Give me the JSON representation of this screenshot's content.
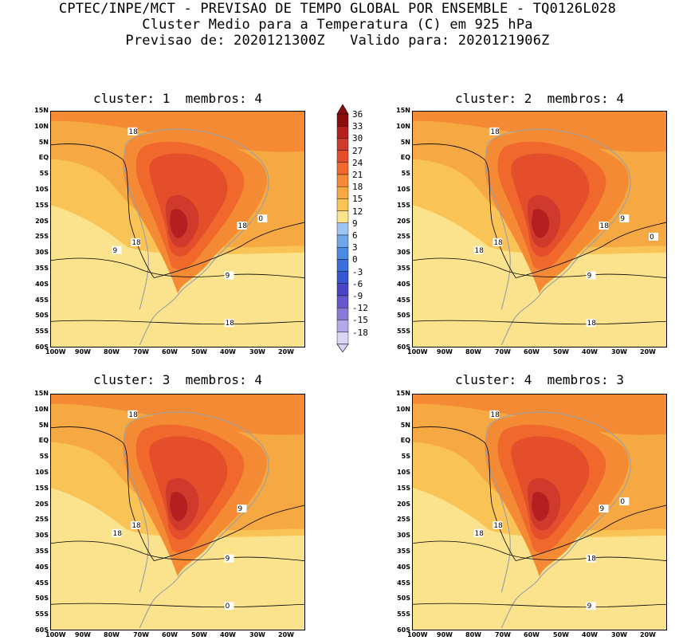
{
  "header": {
    "line1": "CPTEC/INPE/MCT - PREVISAO DE TEMPO GLOBAL POR ENSEMBLE - TQ0126L028",
    "line2": "Cluster Medio para a Temperatura (C) em 925 hPa",
    "line3": "Previsao de: 2020121300Z   Valido para: 2020121906Z"
  },
  "panels": [
    {
      "title": "cluster: 1  membros: 4",
      "contour_labels": [
        "18",
        "18",
        "18",
        "9",
        "9",
        "18",
        "0"
      ]
    },
    {
      "title": "cluster: 2  membros: 4",
      "contour_labels": [
        "18",
        "18",
        "18",
        "18",
        "9",
        "18",
        "9",
        "0"
      ]
    },
    {
      "title": "cluster: 3  membros: 4",
      "contour_labels": [
        "18",
        "18",
        "9",
        "18",
        "9",
        "0"
      ]
    },
    {
      "title": "cluster: 4  membros: 3",
      "contour_labels": [
        "18",
        "18",
        "9",
        "18",
        "18",
        "9",
        "0"
      ]
    }
  ],
  "axes": {
    "lat_labels": [
      "15N",
      "10N",
      "5N",
      "EQ",
      "5S",
      "10S",
      "15S",
      "20S",
      "25S",
      "30S",
      "35S",
      "40S",
      "45S",
      "50S",
      "55S",
      "60S"
    ],
    "lon_labels": [
      "100W",
      "90W",
      "80W",
      "70W",
      "60W",
      "50W",
      "40W",
      "30W",
      "20W"
    ]
  },
  "colorbar": {
    "labels": [
      "36",
      "33",
      "30",
      "27",
      "24",
      "21",
      "18",
      "15",
      "12",
      "9",
      "6",
      "3",
      "0",
      "-3",
      "-6",
      "-9",
      "-12",
      "-15",
      "-18"
    ],
    "colors": [
      "#8c0d0d",
      "#b51f20",
      "#cf3a2c",
      "#e44e2b",
      "#f0682c",
      "#f48a34",
      "#f6a842",
      "#f9c356",
      "#fbe38d",
      "#9dc5f2",
      "#6fa6ea",
      "#4b8ae3",
      "#3a6edb",
      "#3856d1",
      "#4a45c6",
      "#6657cc",
      "#8a7ad8",
      "#b4a8e6",
      "#dcd4f4"
    ]
  },
  "legend_colors": {
    "land_outline": "#a0a0a0",
    "contour_line": "#000000",
    "ocean_warm": "#f6a842",
    "ocean_cool": "#9dc5f2"
  }
}
